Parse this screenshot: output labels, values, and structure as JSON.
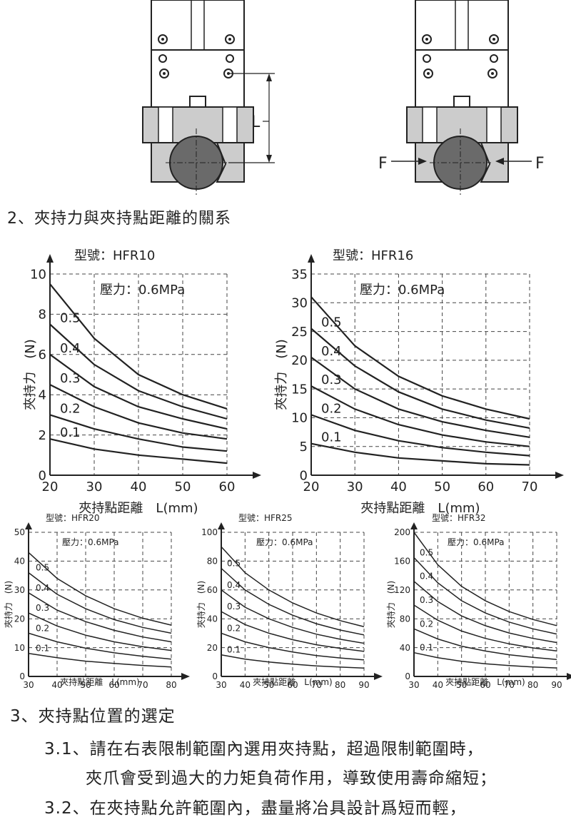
{
  "diagram": {
    "label_L": "L",
    "label_F_left": "F",
    "label_F_right": "F"
  },
  "section2_title": "2、夾持力與夾持點距離的關系",
  "section3": {
    "title": "3、夾持點位置的選定",
    "line1": "3.1、請在右表限制範圍內選用夾持點，超過限制範圍時，",
    "line2": "夾爪會受到過大的力矩負荷作用，導致使用壽命縮短；",
    "line3": "3.2、在夾持點允許範圍內，盡量將冶具設計爲短而輕，"
  },
  "chart_data": [
    {
      "id": "c10",
      "type": "line",
      "title": "型號：HFR10",
      "annotation": "壓力：0.6MPa",
      "xlabel": "夾持點距離　L(mm)",
      "ylabel": "夾持力　(N)",
      "x": [
        20,
        30,
        40,
        50,
        60
      ],
      "xlim": [
        20,
        60
      ],
      "ylim": [
        0,
        10
      ],
      "yticks": [
        0,
        2,
        4,
        6,
        8,
        10
      ],
      "series": [
        {
          "name": "0.1",
          "values": [
            1.8,
            1.3,
            1.0,
            0.8,
            0.6
          ]
        },
        {
          "name": "0.2",
          "values": [
            3.0,
            2.3,
            1.8,
            1.4,
            1.2
          ]
        },
        {
          "name": "0.3",
          "values": [
            4.5,
            3.4,
            2.6,
            2.1,
            1.8
          ]
        },
        {
          "name": "0.4",
          "values": [
            6.0,
            4.4,
            3.4,
            2.8,
            2.3
          ]
        },
        {
          "name": "0.5",
          "values": [
            7.5,
            5.5,
            4.2,
            3.4,
            2.8
          ]
        },
        {
          "name": "",
          "values": [
            9.5,
            6.8,
            5.0,
            4.0,
            3.3
          ]
        }
      ]
    },
    {
      "id": "c16",
      "type": "line",
      "title": "型號：HFR16",
      "annotation": "壓力：0.6MPa",
      "xlabel": "夾持點距離　L(mm)",
      "ylabel": "夾持力　(N)",
      "x": [
        20,
        30,
        40,
        50,
        60,
        70
      ],
      "xlim": [
        20,
        70
      ],
      "ylim": [
        0,
        35
      ],
      "yticks": [
        0,
        5,
        10,
        15,
        20,
        25,
        30,
        35
      ],
      "series": [
        {
          "name": "0.1",
          "values": [
            5.5,
            4.0,
            3.0,
            2.5,
            2.0,
            1.8
          ]
        },
        {
          "name": "0.2",
          "values": [
            10.5,
            7.8,
            6.0,
            4.8,
            4.0,
            3.4
          ]
        },
        {
          "name": "0.3",
          "values": [
            15.5,
            11.5,
            8.8,
            7.0,
            5.8,
            5.0
          ]
        },
        {
          "name": "0.4",
          "values": [
            20.5,
            15.0,
            11.5,
            9.3,
            7.8,
            6.6
          ]
        },
        {
          "name": "0.5",
          "values": [
            25.5,
            19.0,
            14.5,
            11.5,
            9.6,
            8.2
          ]
        },
        {
          "name": "",
          "values": [
            31.0,
            22.5,
            17.2,
            13.8,
            11.5,
            9.8
          ]
        }
      ]
    },
    {
      "id": "c20",
      "type": "line",
      "title": "型號：HFR20",
      "annotation": "壓力：0.6MPa",
      "xlabel": "夾持點距離　L(mm)",
      "ylabel": "夾持力　(N)",
      "x": [
        30,
        40,
        50,
        60,
        70,
        80
      ],
      "xlim": [
        30,
        80
      ],
      "ylim": [
        0,
        50
      ],
      "yticks": [
        0,
        10,
        20,
        30,
        40,
        50
      ],
      "series": [
        {
          "name": "0.1",
          "values": [
            8,
            6.5,
            5.3,
            4.5,
            3.8,
            3.3
          ]
        },
        {
          "name": "0.2",
          "values": [
            15,
            12,
            9.8,
            8.2,
            7,
            6
          ]
        },
        {
          "name": "0.3",
          "values": [
            22,
            17.5,
            14.3,
            12,
            10.3,
            9
          ]
        },
        {
          "name": "0.4",
          "values": [
            29,
            23,
            19,
            16,
            13.7,
            12
          ]
        },
        {
          "name": "0.5",
          "values": [
            36,
            28.5,
            23.5,
            19.7,
            17,
            15
          ]
        },
        {
          "name": "",
          "values": [
            43,
            34,
            28,
            23.5,
            20.2,
            17.8
          ]
        }
      ]
    },
    {
      "id": "c25",
      "type": "line",
      "title": "型號：HFR25",
      "annotation": "壓力：0.6MPa",
      "xlabel": "夾持點距離　L(mm)",
      "ylabel": "夾持力　(N)",
      "x": [
        30,
        40,
        50,
        60,
        70,
        80,
        90
      ],
      "xlim": [
        30,
        90
      ],
      "ylim": [
        0,
        100
      ],
      "yticks": [
        0,
        20,
        40,
        60,
        80,
        100
      ],
      "series": [
        {
          "name": "0.1",
          "values": [
            15,
            12,
            10,
            8.5,
            7.3,
            6.5,
            5.8
          ]
        },
        {
          "name": "0.2",
          "values": [
            30,
            24,
            20,
            17,
            14.5,
            12.8,
            11.5
          ]
        },
        {
          "name": "0.3",
          "values": [
            45,
            36,
            30,
            25.5,
            22,
            19.5,
            17.4
          ]
        },
        {
          "name": "0.4",
          "values": [
            60,
            48,
            40,
            34,
            29.3,
            25.8,
            23
          ]
        },
        {
          "name": "0.5",
          "values": [
            75,
            60,
            50,
            42.5,
            36.6,
            32.2,
            28.8
          ]
        },
        {
          "name": "",
          "values": [
            90,
            72,
            60,
            51,
            44,
            38.7,
            34.5
          ]
        }
      ]
    },
    {
      "id": "c32",
      "type": "line",
      "title": "型號：HFR32",
      "annotation": "壓力：0.6MPa",
      "xlabel": "夾持點距離　L(mm)",
      "ylabel": "夾持力　(N)",
      "x": [
        30,
        40,
        50,
        60,
        70,
        80,
        90
      ],
      "xlim": [
        30,
        90
      ],
      "ylim": [
        0,
        200
      ],
      "yticks": [
        0,
        40,
        80,
        120,
        160,
        200
      ],
      "series": [
        {
          "name": "0.1",
          "values": [
            33,
            26,
            21,
            17.6,
            15,
            13.2,
            11.8
          ]
        },
        {
          "name": "0.2",
          "values": [
            66,
            52,
            42,
            35.2,
            30.1,
            26.4,
            23.5
          ]
        },
        {
          "name": "0.3",
          "values": [
            99,
            78,
            63,
            52.8,
            45.2,
            39.6,
            35.3
          ]
        },
        {
          "name": "0.4",
          "values": [
            132,
            104,
            84,
            70.4,
            60.3,
            52.8,
            47
          ]
        },
        {
          "name": "0.5",
          "values": [
            165,
            130,
            105,
            88,
            75.4,
            66,
            58.8
          ]
        },
        {
          "name": "",
          "values": [
            200,
            155,
            125,
            105,
            90,
            79,
            70.5
          ]
        }
      ]
    }
  ]
}
